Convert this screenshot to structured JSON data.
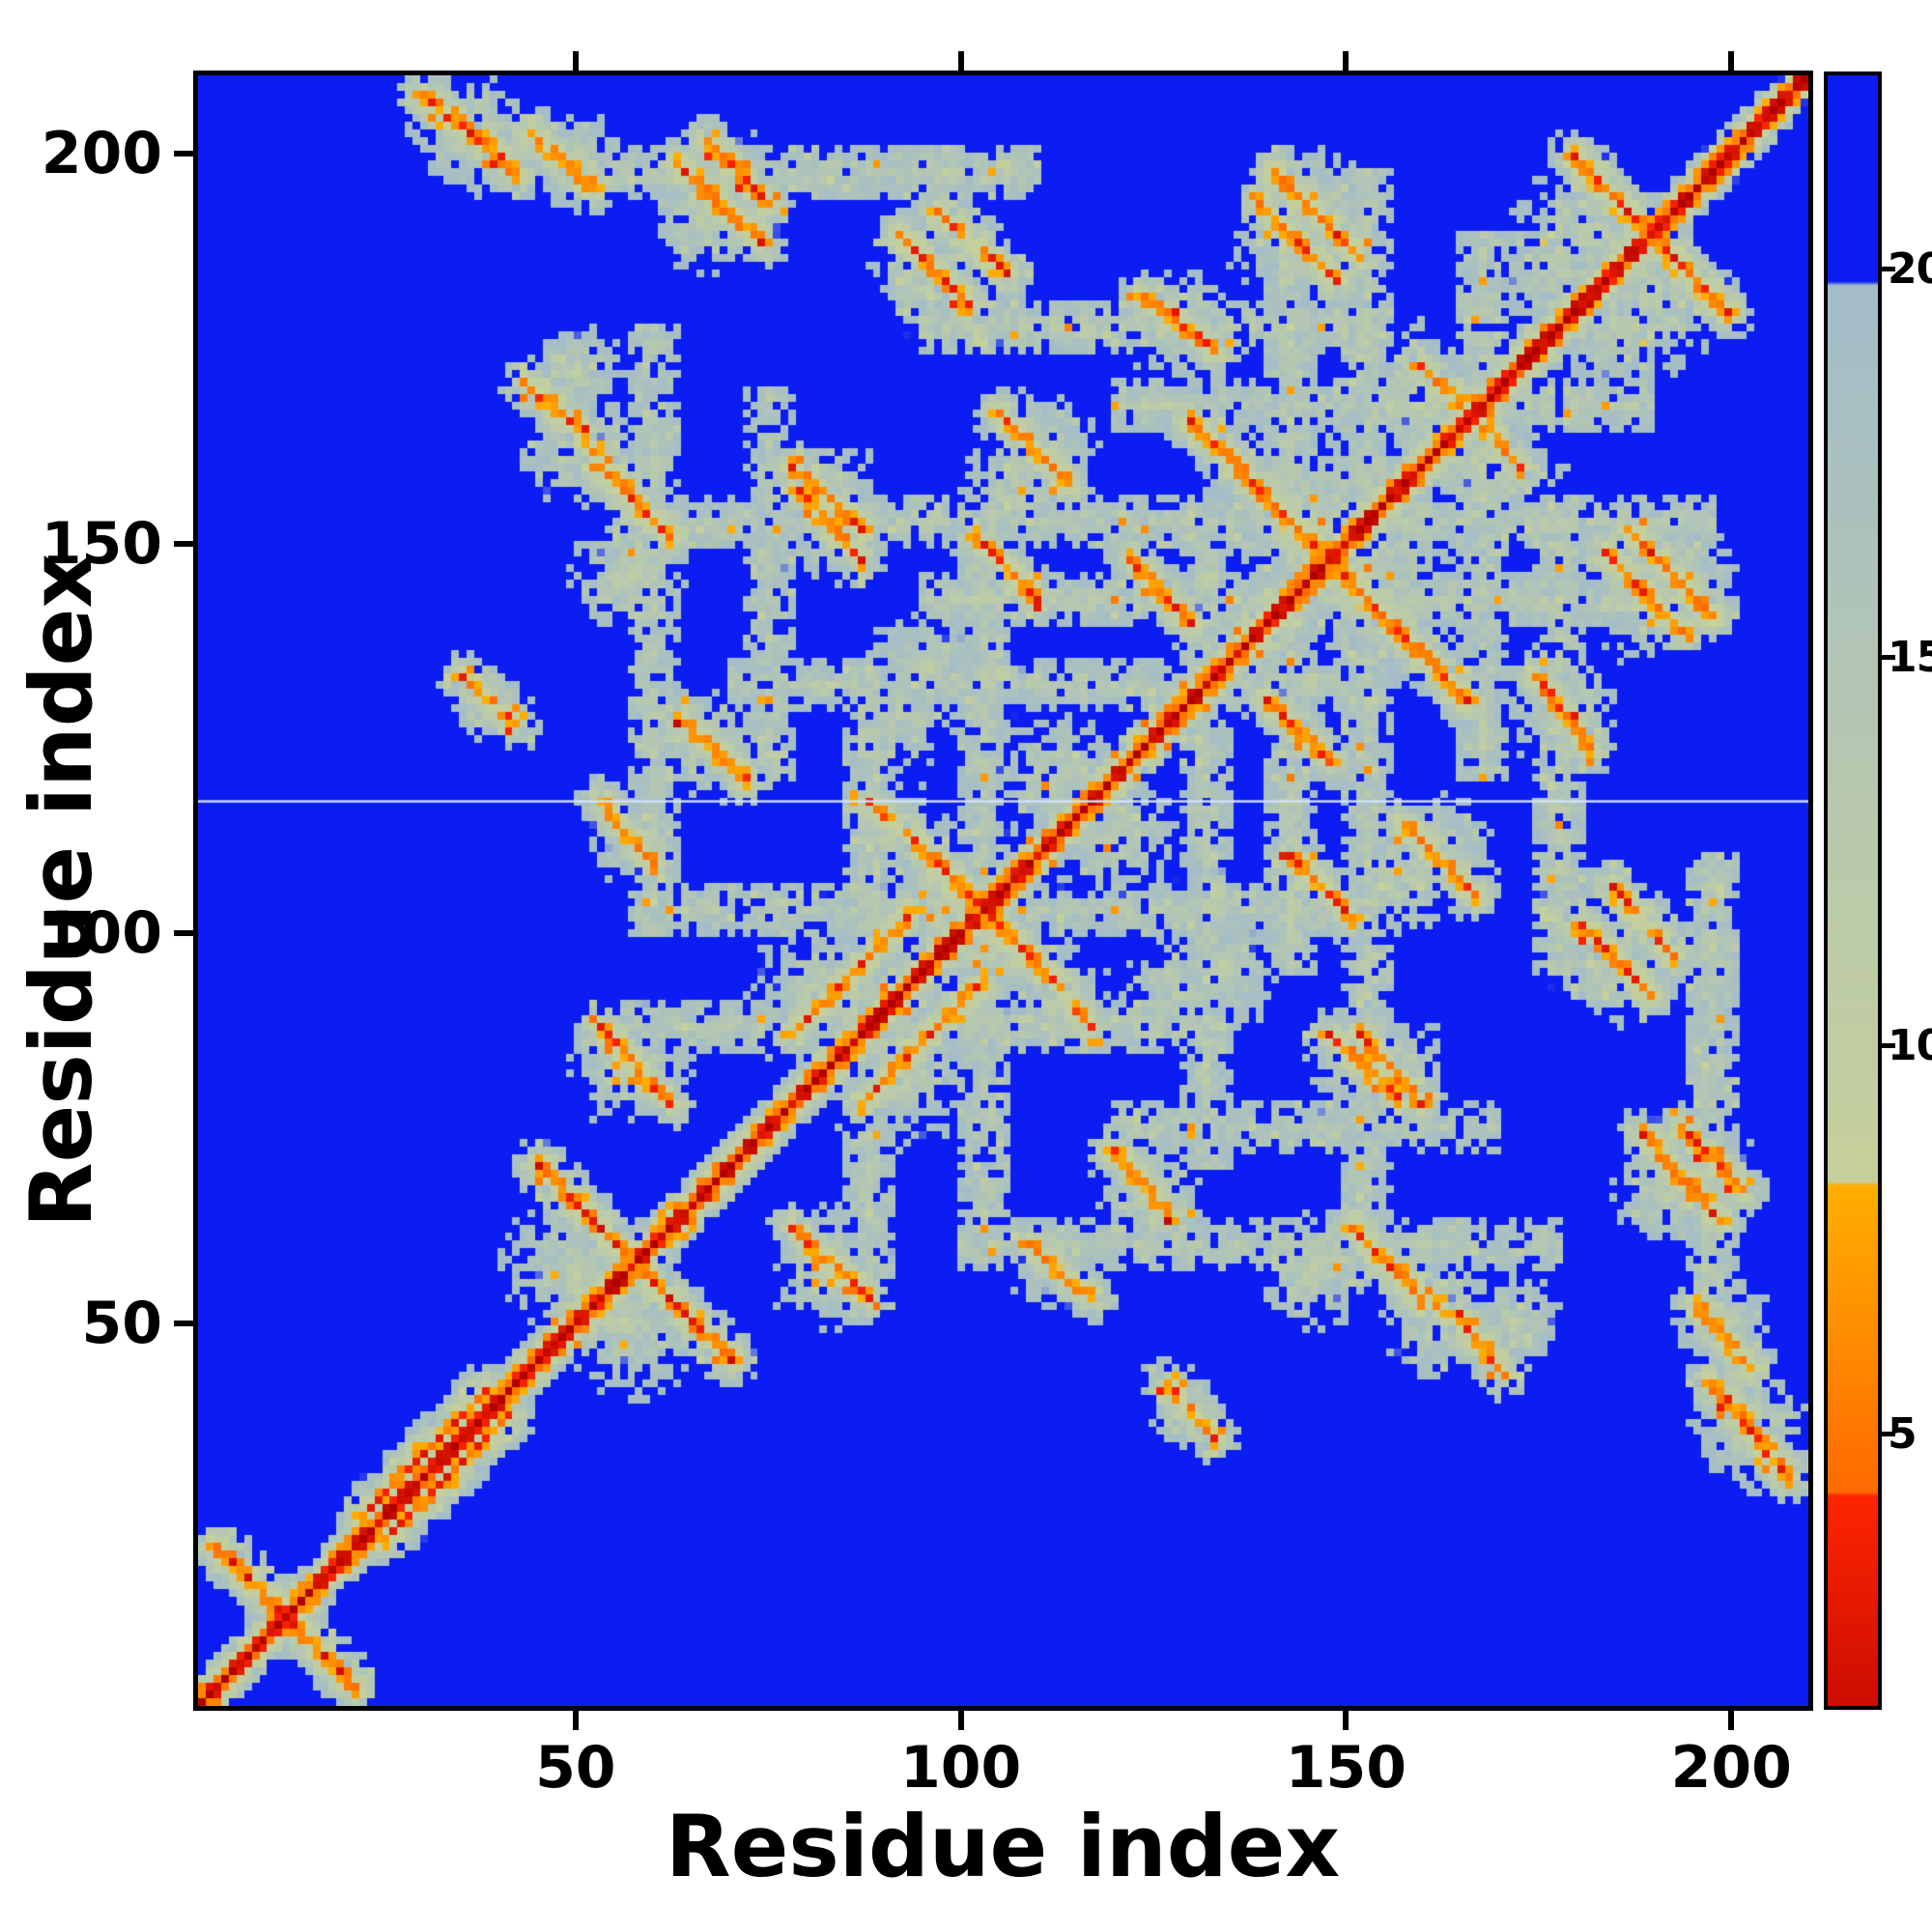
{
  "chart_data": {
    "type": "heatmap",
    "title": "",
    "xlabel": "Residue index",
    "ylabel": "Residue index",
    "x_range": [
      1,
      210
    ],
    "y_range": [
      1,
      210
    ],
    "x_ticks": [
      50,
      100,
      150,
      200
    ],
    "y_ticks": [
      50,
      100,
      150,
      200
    ],
    "grid": false,
    "n_residues": 210,
    "gap_row": 117,
    "colorbar": {
      "range": [
        1.5,
        22.5
      ],
      "ticks": [
        5,
        10,
        15,
        20
      ],
      "position": "right"
    },
    "colors": {
      "background_blue": "#0b1df2",
      "contact_red": "#e01500",
      "contact_orange": "#ff8c00",
      "mid_pale_green": "#c2ce9d",
      "mid_pale_blue": "#a3bcc9",
      "gap_line": "#d2e1f6",
      "frame": "#000000"
    },
    "colormap_stops": [
      {
        "v": 0.0,
        "c": "#b00000"
      },
      {
        "v": 4.2,
        "c": "#ff2600"
      },
      {
        "v": 4.25,
        "c": "#ff6a00"
      },
      {
        "v": 8.2,
        "c": "#ffae00"
      },
      {
        "v": 8.25,
        "c": "#c6d09b"
      },
      {
        "v": 14.0,
        "c": "#b5c7b2"
      },
      {
        "v": 19.8,
        "c": "#a3bcc9"
      },
      {
        "v": 19.85,
        "c": "#0b1df2"
      },
      {
        "v": 27.0,
        "c": "#0b1df2"
      }
    ],
    "generator": {
      "chain": {
        "step": 3.8,
        "exponent": 1.12,
        "background": 23
      },
      "noise": {
        "amplitude": 2.8,
        "orange_speckle_prob": 0.06,
        "blue_speckle_prob": 0.1,
        "seed": 1337
      },
      "segments": [
        [
          3,
          21,
          21,
          3,
          4.4
        ],
        [
          45,
          70,
          70,
          45,
          4.2
        ],
        [
          96,
          110,
          110,
          96,
          4.5
        ],
        [
          130,
          166,
          166,
          130,
          4.2
        ],
        [
          180,
          200,
          200,
          180,
          4.4
        ],
        [
          22,
          25,
          38,
          41,
          5.0
        ],
        [
          208,
          30,
          198,
          42,
          4.5
        ],
        [
          203,
          44,
          196,
          52,
          5.0
        ],
        [
          202,
          67,
          194,
          75,
          4.7
        ],
        [
          193,
          97,
          185,
          106,
          4.6
        ],
        [
          182,
          124,
          175,
          133,
          4.8
        ],
        [
          194,
          139,
          184,
          149,
          5.2
        ],
        [
          160,
          53,
          151,
          62,
          4.8
        ],
        [
          160,
          78,
          152,
          87,
          4.8
        ],
        [
          167,
          105,
          158,
          114,
          5.0
        ],
        [
          151,
          188,
          141,
          198,
          4.6
        ],
        [
          101,
          181,
          92,
          190,
          4.8
        ],
        [
          87,
          148,
          79,
          157,
          4.8
        ],
        [
          117,
          88,
          111,
          95,
          5.2
        ],
        [
          133,
          35,
          127,
          42,
          5.2
        ],
        [
          88,
          53,
          78,
          62,
          4.8
        ],
        [
          74,
          189,
          63,
          199,
          4.6
        ],
        [
          56,
          158,
          46,
          169,
          5.2
        ],
        [
          60,
          109,
          53,
          117,
          5.5
        ],
        [
          78,
          87,
          94,
          103,
          5.2
        ],
        [
          128,
          63,
          120,
          72,
          5.2
        ],
        [
          110,
          143,
          102,
          151,
          5.0
        ],
        [
          173,
          160,
          164,
          170,
          5.4
        ],
        [
          148,
          122,
          140,
          130,
          4.8
        ],
        [
          171,
          43,
          165,
          50,
          5.4
        ]
      ],
      "blobs": [
        [
          203,
          36,
          7,
          10.5,
          10
        ],
        [
          199,
          50,
          6,
          11,
          10
        ],
        [
          197,
          70,
          6,
          11,
          10
        ],
        [
          188,
          101,
          6,
          11,
          10
        ],
        [
          178,
          129,
          7,
          11,
          10
        ],
        [
          188,
          144,
          8,
          12,
          9
        ],
        [
          146,
          57,
          7,
          11,
          9
        ],
        [
          156,
          82,
          7,
          11,
          9
        ],
        [
          162,
          110,
          7,
          11,
          9
        ],
        [
          146,
          193,
          7,
          11,
          9
        ],
        [
          96,
          185,
          7,
          11,
          9
        ],
        [
          83,
          152,
          6,
          11,
          9
        ],
        [
          67,
          193,
          7,
          11.5,
          9
        ],
        [
          50,
          163,
          8,
          12,
          9
        ],
        [
          57,
          113,
          6,
          12,
          9
        ],
        [
          83,
          57,
          7,
          11,
          9
        ],
        [
          124,
          67,
          7,
          12,
          9
        ],
        [
          130,
          38,
          5,
          12,
          9
        ],
        [
          113,
          91,
          6,
          11,
          9
        ],
        [
          84,
          92,
          10,
          11,
          9
        ],
        [
          104,
          98,
          9,
          11,
          9
        ],
        [
          146,
          152,
          12,
          11,
          9
        ],
        [
          160,
          168,
          10,
          11.5,
          9
        ],
        [
          178,
          186,
          9,
          12,
          9
        ],
        [
          190,
          182,
          9,
          12,
          9
        ],
        [
          120,
          112,
          8,
          12,
          9
        ],
        [
          57,
          50,
          9,
          12,
          9
        ],
        [
          172,
          50,
          6,
          12,
          9
        ],
        [
          166,
          166,
          8,
          12,
          9
        ],
        [
          107,
          157,
          7,
          12,
          9
        ],
        [
          92,
          128,
          7,
          12.5,
          9
        ],
        [
          135,
          95,
          7,
          12,
          9
        ]
      ],
      "bands": [
        [
          153,
          60,
          198,
          3,
          13
        ],
        [
          143,
          95,
          192,
          3,
          13
        ],
        [
          103,
          58,
          148,
          3,
          13.2
        ],
        [
          88,
          55,
          135,
          3,
          13.2
        ],
        [
          178,
          95,
          152,
          3,
          13
        ],
        [
          60,
          100,
          178,
          3,
          13.5
        ],
        [
          198,
          55,
          110,
          3,
          13.2
        ],
        [
          168,
          120,
          190,
          3,
          13.2
        ],
        [
          132,
          70,
          150,
          3,
          13.5
        ],
        [
          75,
          120,
          170,
          3,
          13.8
        ]
      ]
    }
  }
}
